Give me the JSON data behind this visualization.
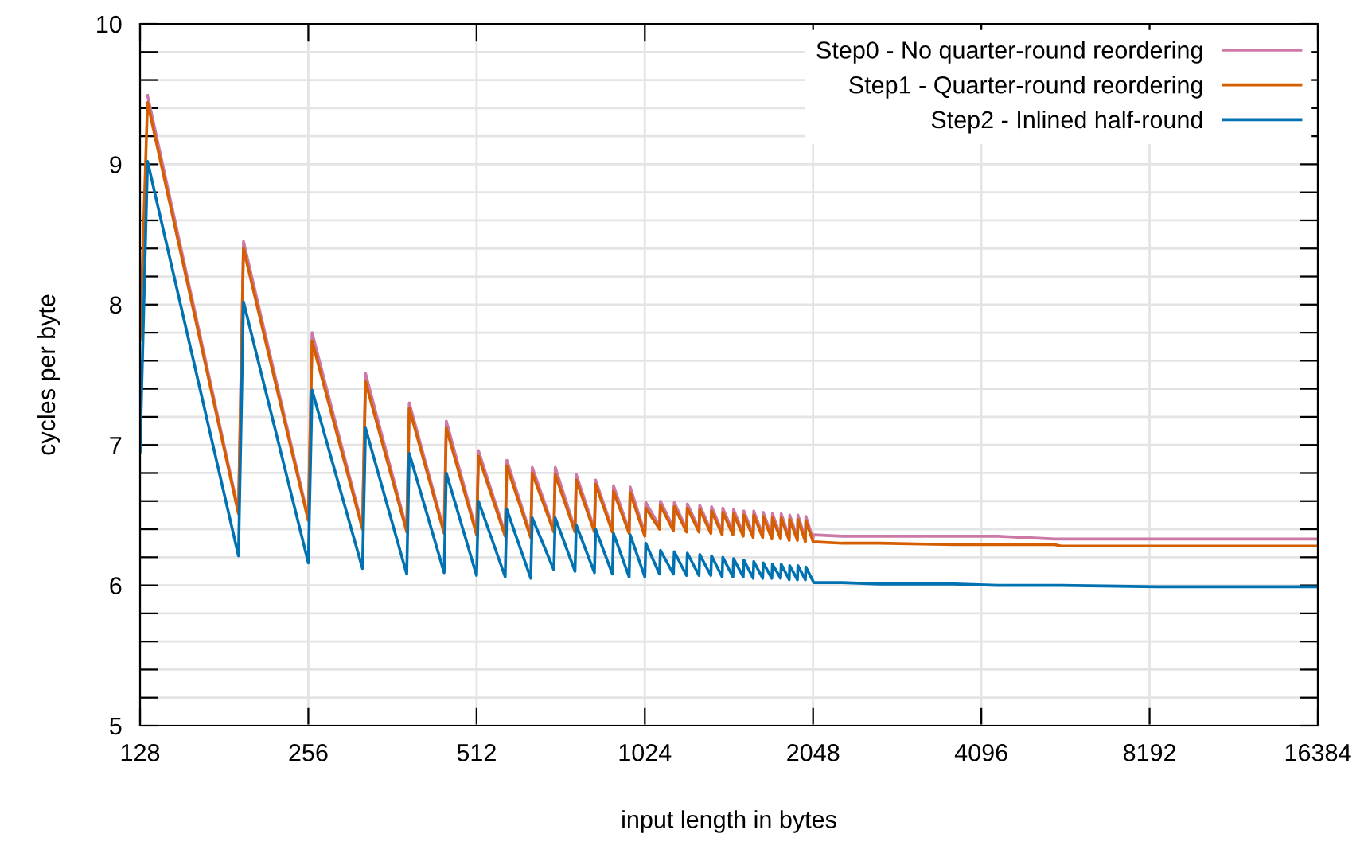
{
  "chart_data": {
    "type": "line",
    "xlabel": "input length in bytes",
    "ylabel": "cycles per byte",
    "x": [
      128,
      132,
      192,
      196,
      256,
      260,
      320,
      324,
      384,
      388,
      448,
      452,
      512,
      516,
      576,
      580,
      640,
      644,
      704,
      708,
      768,
      772,
      832,
      836,
      896,
      900,
      960,
      964,
      1024,
      1028,
      1088,
      1092,
      1152,
      1156,
      1216,
      1220,
      1280,
      1284,
      1344,
      1348,
      1408,
      1412,
      1472,
      1476,
      1536,
      1540,
      1600,
      1604,
      1664,
      1668,
      1728,
      1732,
      1792,
      1796,
      1856,
      1860,
      1920,
      1924,
      1984,
      1988,
      2048,
      2052,
      2312,
      2688,
      3664,
      4375,
      5543,
      5690,
      8440,
      16384
    ],
    "series": [
      {
        "name": "Step0 - No quarter-round reordering",
        "color": "#cc79a7",
        "values": [
          null,
          9.49,
          6.53,
          8.45,
          6.48,
          7.8,
          6.42,
          7.51,
          6.4,
          7.3,
          6.39,
          7.17,
          6.38,
          6.96,
          6.37,
          6.89,
          6.36,
          6.84,
          6.4,
          6.84,
          6.4,
          6.79,
          6.4,
          6.75,
          6.4,
          6.71,
          6.39,
          6.7,
          6.37,
          6.59,
          6.42,
          6.6,
          6.41,
          6.59,
          6.4,
          6.58,
          6.4,
          6.57,
          6.39,
          6.56,
          6.38,
          6.55,
          6.38,
          6.54,
          6.37,
          6.53,
          6.36,
          6.53,
          6.36,
          6.52,
          6.35,
          6.51,
          6.35,
          6.51,
          6.34,
          6.5,
          6.34,
          6.5,
          6.33,
          6.49,
          6.33,
          6.36,
          6.35,
          6.35,
          6.35,
          6.35,
          6.33,
          6.33,
          6.33,
          6.33
        ]
      },
      {
        "name": "Step1 - Quarter-round reordering",
        "color": "#d55e00",
        "values": [
          7.75,
          9.44,
          6.51,
          8.4,
          6.46,
          7.74,
          6.4,
          7.45,
          6.38,
          7.26,
          6.37,
          7.12,
          6.36,
          6.92,
          6.35,
          6.85,
          6.34,
          6.8,
          6.38,
          6.79,
          6.38,
          6.75,
          6.38,
          6.72,
          6.38,
          6.67,
          6.37,
          6.66,
          6.35,
          6.55,
          6.4,
          6.57,
          6.39,
          6.56,
          6.38,
          6.55,
          6.38,
          6.54,
          6.37,
          6.53,
          6.36,
          6.52,
          6.36,
          6.51,
          6.35,
          6.5,
          6.34,
          6.5,
          6.34,
          6.49,
          6.33,
          6.48,
          6.33,
          6.48,
          6.32,
          6.47,
          6.32,
          6.47,
          6.31,
          6.46,
          6.31,
          6.31,
          6.3,
          6.3,
          6.29,
          6.29,
          6.29,
          6.28,
          6.28,
          6.28
        ]
      },
      {
        "name": "Step2 - Inlined half-round",
        "color": "#0072b2",
        "values": [
          6.95,
          9.02,
          6.21,
          8.02,
          6.16,
          7.39,
          6.12,
          7.12,
          6.08,
          6.94,
          6.09,
          6.8,
          6.07,
          6.6,
          6.06,
          6.54,
          6.05,
          6.48,
          6.11,
          6.48,
          6.1,
          6.43,
          6.09,
          6.4,
          6.08,
          6.37,
          6.06,
          6.36,
          6.06,
          6.3,
          6.08,
          6.25,
          6.08,
          6.24,
          6.07,
          6.23,
          6.07,
          6.22,
          6.07,
          6.21,
          6.06,
          6.2,
          6.06,
          6.19,
          6.06,
          6.18,
          6.05,
          6.17,
          6.05,
          6.16,
          6.05,
          6.15,
          6.05,
          6.15,
          6.04,
          6.14,
          6.04,
          6.14,
          6.04,
          6.13,
          6.03,
          6.02,
          6.02,
          6.01,
          6.01,
          6.0,
          6.0,
          6.0,
          5.99,
          5.99
        ]
      }
    ],
    "log": "x",
    "xlim": [
      128,
      16384
    ],
    "xticks": [
      128,
      256,
      512,
      1024,
      2048,
      4096,
      8192,
      16384
    ],
    "ylim": [
      5,
      10
    ],
    "yticks": [
      5,
      {
        "value": 5.2,
        "label": null
      },
      {
        "value": 5.4,
        "label": null
      },
      {
        "value": 5.6,
        "label": null
      },
      {
        "value": 5.8,
        "label": null
      },
      6,
      {
        "value": 6.2,
        "label": null
      },
      {
        "value": 6.4,
        "label": null
      },
      {
        "value": 6.6,
        "label": null
      },
      {
        "value": 6.8,
        "label": null
      },
      7,
      {
        "value": 7.2,
        "label": null
      },
      {
        "value": 7.4,
        "label": null
      },
      {
        "value": 7.6,
        "label": null
      },
      {
        "value": 7.8,
        "label": null
      },
      8,
      {
        "value": 8.2,
        "label": null
      },
      {
        "value": 8.4,
        "label": null
      },
      {
        "value": 8.6,
        "label": null
      },
      {
        "value": 8.8,
        "label": null
      },
      9,
      {
        "value": 9.2,
        "label": null
      },
      {
        "value": 9.4,
        "label": null
      },
      {
        "value": 9.6,
        "label": null
      },
      {
        "value": 9.8,
        "label": null
      },
      10
    ],
    "grid": true,
    "legend": "top right",
    "marker": "none",
    "line_style": "solid"
  }
}
